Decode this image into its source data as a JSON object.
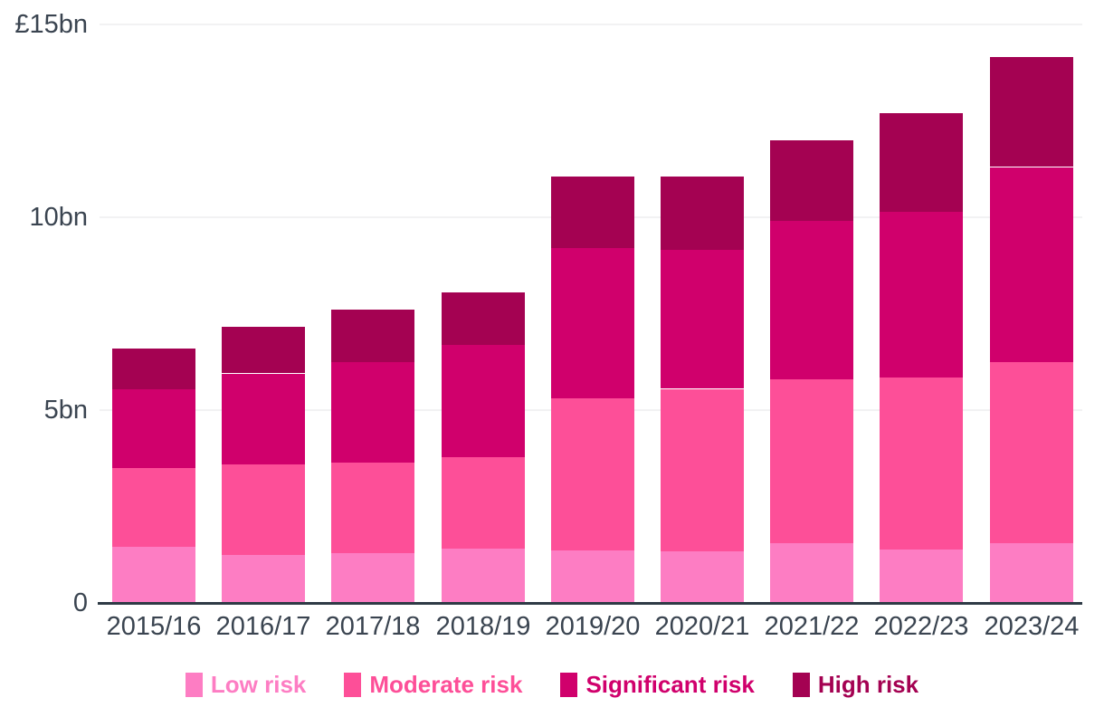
{
  "chart_data": {
    "type": "bar",
    "stacked": true,
    "unit": "£bn",
    "categories": [
      "2015/16",
      "2016/17",
      "2017/18",
      "2018/19",
      "2019/20",
      "2020/21",
      "2021/22",
      "2022/23",
      "2023/24"
    ],
    "series": [
      {
        "name": "Low risk",
        "color": "#FD7DC3",
        "values": [
          1.45,
          1.25,
          1.3,
          1.4,
          1.35,
          1.35,
          1.55,
          1.4,
          1.55
        ]
      },
      {
        "name": "Moderate risk",
        "color": "#FD4F98",
        "values": [
          2.05,
          2.35,
          2.35,
          2.4,
          3.95,
          4.2,
          4.25,
          4.45,
          4.7
        ]
      },
      {
        "name": "Significant risk",
        "color": "#D0006C",
        "values": [
          2.05,
          2.35,
          2.6,
          2.9,
          3.9,
          3.6,
          4.1,
          4.3,
          5.05
        ]
      },
      {
        "name": "High risk",
        "color": "#A40252",
        "values": [
          1.05,
          1.2,
          1.35,
          1.35,
          1.85,
          1.9,
          2.1,
          2.55,
          2.85
        ]
      }
    ],
    "totals": [
      6.6,
      7.15,
      7.6,
      8.05,
      11.05,
      11.05,
      12.0,
      12.7,
      14.15
    ],
    "y_axis": {
      "min": 0,
      "max": 15,
      "ticks": [
        {
          "value": 15,
          "label": "£15bn"
        },
        {
          "value": 10,
          "label": "10bn"
        },
        {
          "value": 5,
          "label": "5bn"
        },
        {
          "value": 0,
          "label": "0"
        }
      ]
    },
    "legend_position": "bottom",
    "grid": true
  },
  "colors": {
    "background": "#FFFFFF",
    "axis_text": "#3A4450",
    "axis_line": "#2E3A45",
    "gridline": "#F2F2F3"
  }
}
